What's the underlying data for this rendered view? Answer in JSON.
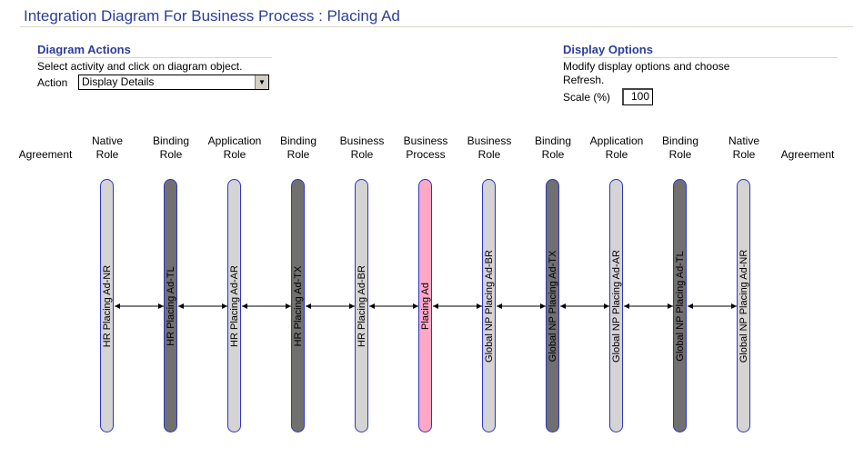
{
  "page": {
    "title": "Integration Diagram For Business Process : Placing Ad"
  },
  "diagram_actions": {
    "title": "Diagram Actions",
    "instruction": "Select activity and click on diagram object.",
    "action_label": "Action",
    "action_value": "Display Details"
  },
  "display_options": {
    "title": "Display Options",
    "instruction_line1": "Modify display options and choose",
    "instruction_line2": "Refresh.",
    "scale_label": "Scale (%)",
    "scale_value": "100"
  },
  "columns": [
    {
      "header1": "",
      "header2": "Agreement"
    },
    {
      "header1": "Native",
      "header2": "Role",
      "lane": "HR Placing Ad-NR",
      "type": "role"
    },
    {
      "header1": "Binding",
      "header2": "Role",
      "lane": "HR Placing Ad-TL",
      "type": "binding"
    },
    {
      "header1": "Application",
      "header2": "Role",
      "lane": "HR Placing Ad-AR",
      "type": "role"
    },
    {
      "header1": "Binding",
      "header2": "Role",
      "lane": "HR Placing Ad-TX",
      "type": "binding"
    },
    {
      "header1": "Business",
      "header2": "Role",
      "lane": "HR Placing Ad-BR",
      "type": "role"
    },
    {
      "header1": "Business",
      "header2": "Process",
      "lane": "Placing Ad",
      "type": "process"
    },
    {
      "header1": "Business",
      "header2": "Role",
      "lane": "Global NP Placing Ad-BR",
      "type": "role"
    },
    {
      "header1": "Binding",
      "header2": "Role",
      "lane": "Global NP Placing Ad-TX",
      "type": "binding"
    },
    {
      "header1": "Application",
      "header2": "Role",
      "lane": "Global NP Placing Ad-AR",
      "type": "role"
    },
    {
      "header1": "Binding",
      "header2": "Role",
      "lane": "Global NP Placing Ad-TL",
      "type": "binding"
    },
    {
      "header1": "Native",
      "header2": "Role",
      "lane": "Global NP Placing Ad-NR",
      "type": "role"
    },
    {
      "header1": "",
      "header2": "Agreement"
    }
  ],
  "colors": {
    "role": "#d4d4d4",
    "binding": "#707070",
    "process": "#ffa8c6",
    "border": "#2f34c8"
  }
}
